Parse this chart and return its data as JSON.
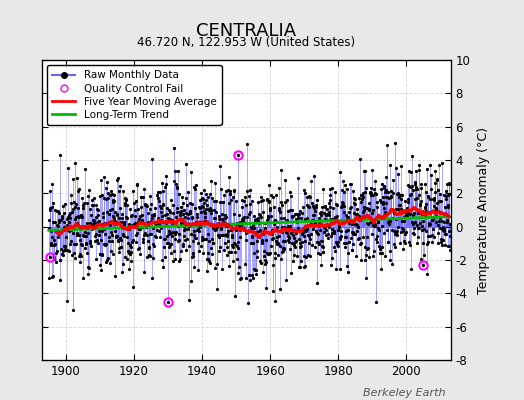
{
  "title": "CENTRALIA",
  "subtitle": "46.720 N, 122.953 W (United States)",
  "ylabel": "Temperature Anomaly (°C)",
  "xlabel_years": [
    1900,
    1920,
    1940,
    1960,
    1980,
    2000
  ],
  "ylim": [
    -8,
    10
  ],
  "xlim": [
    1893,
    2013
  ],
  "yticks": [
    -8,
    -6,
    -4,
    -2,
    0,
    2,
    4,
    6,
    8,
    10
  ],
  "fig_bg_color": "#e8e8e8",
  "plot_bg_color": "#ffffff",
  "grid_color": "#cccccc",
  "line_color": "#6666ff",
  "moving_avg_color": "#ff0000",
  "trend_color": "#00bb00",
  "qc_fail_color": "#ff00ff",
  "marker_color": "#000000",
  "seed": 17,
  "n_months": 1440,
  "start_year": 1895,
  "end_year": 2015,
  "moving_avg_window": 60,
  "watermark": "Berkeley Earth",
  "qc_years": [
    1895.5,
    1930.0,
    1950.5,
    2005.0
  ],
  "qc_vals": [
    -1.8,
    -4.5,
    4.3,
    -2.3
  ]
}
